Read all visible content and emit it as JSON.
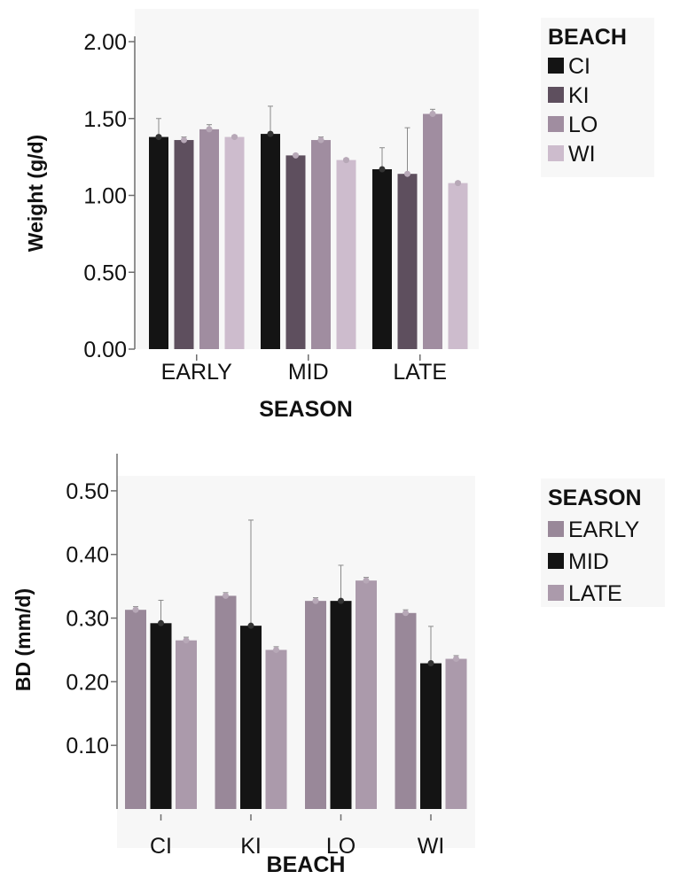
{
  "colors": {
    "CI": "#141414",
    "KI": "#5e4f5e",
    "LO": "#a08da0",
    "WI": "#cdbccd",
    "EARLY": "#998899",
    "MID": "#141414",
    "LATE": "#ab9aab",
    "axis": "#6e6e6e",
    "errorbar": "#8a8a8a",
    "panel": "#f7f7f7"
  },
  "chart_data": [
    {
      "type": "bar",
      "xlabel": "SEASON",
      "ylabel": "Weight (g/d)",
      "ylim": [
        0,
        2.0
      ],
      "yticks": [
        "0.00",
        "0.50",
        "1.00",
        "1.50",
        "2.00"
      ],
      "categories": [
        "EARLY",
        "MID",
        "LATE"
      ],
      "legend": {
        "title": "BEACH",
        "position": "top-right"
      },
      "grid": false,
      "series": [
        {
          "name": "CI",
          "values": [
            1.38,
            1.4,
            1.17
          ],
          "errors": [
            0.12,
            0.18,
            0.14
          ]
        },
        {
          "name": "KI",
          "values": [
            1.36,
            1.26,
            1.14
          ],
          "errors": [
            0.02,
            0.01,
            0.3
          ]
        },
        {
          "name": "LO",
          "values": [
            1.43,
            1.36,
            1.53
          ],
          "errors": [
            0.03,
            0.02,
            0.03
          ]
        },
        {
          "name": "WI",
          "values": [
            1.38,
            1.23,
            1.08
          ],
          "errors": [
            0.01,
            0.01,
            0.01
          ]
        }
      ]
    },
    {
      "type": "bar",
      "xlabel": "BEACH",
      "ylabel": "BD (mm/d)",
      "ylim": [
        0.0,
        0.55
      ],
      "yticks": [
        "0.10",
        "0.20",
        "0.30",
        "0.40",
        "0.50"
      ],
      "categories": [
        "CI",
        "KI",
        "LO",
        "WI"
      ],
      "legend": {
        "title": "SEASON",
        "position": "top-right"
      },
      "grid": false,
      "series": [
        {
          "name": "EARLY",
          "values": [
            0.313,
            0.335,
            0.327,
            0.308
          ],
          "errors": [
            0.005,
            0.005,
            0.005,
            0.005
          ]
        },
        {
          "name": "MID",
          "values": [
            0.292,
            0.288,
            0.327,
            0.229
          ],
          "errors": [
            0.036,
            0.166,
            0.056,
            0.058
          ]
        },
        {
          "name": "LATE",
          "values": [
            0.265,
            0.25,
            0.359,
            0.236
          ],
          "errors": [
            0.005,
            0.005,
            0.005,
            0.005
          ]
        }
      ]
    }
  ]
}
